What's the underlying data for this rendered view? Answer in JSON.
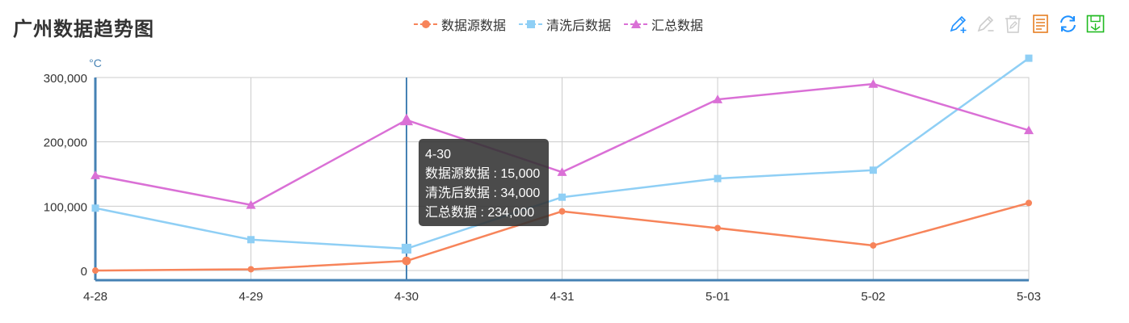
{
  "title": "广州数据趋势图",
  "toolbox": [
    {
      "name": "mark-icon",
      "color": "#1e90ff"
    },
    {
      "name": "mark-undo-icon",
      "color": "#cccccc"
    },
    {
      "name": "mark-clear-icon",
      "color": "#cccccc"
    },
    {
      "name": "data-view-icon",
      "color": "#e67e22"
    },
    {
      "name": "restore-icon",
      "color": "#1e90ff"
    },
    {
      "name": "save-image-icon",
      "color": "#22bb22"
    }
  ],
  "tooltip": {
    "header": "4-30",
    "lines": [
      "数据源数据 : 15,000",
      "清洗后数据 : 34,000",
      "汇总数据 : 234,000"
    ]
  },
  "chart_data": {
    "type": "line",
    "categories": [
      "4-28",
      "4-29",
      "4-30",
      "4-31",
      "5-01",
      "5-02",
      "5-03"
    ],
    "ylabel": "°C",
    "y_ticks": [
      0,
      100000,
      200000,
      300000
    ],
    "y_tick_labels": [
      "0",
      "100,000",
      "200,000",
      "300,000"
    ],
    "ylim": [
      -15000,
      300000
    ],
    "grid": true,
    "legend_position": "top-center",
    "series": [
      {
        "name": "数据源数据",
        "marker": "circle",
        "color": "#f7845a",
        "values": [
          0,
          2000,
          15000,
          92000,
          66000,
          39000,
          105000
        ]
      },
      {
        "name": "清洗后数据",
        "marker": "square",
        "color": "#8fcff5",
        "values": [
          97000,
          48000,
          34000,
          114000,
          143000,
          156000,
          330000
        ]
      },
      {
        "name": "汇总数据",
        "marker": "triangle",
        "color": "#da70d6",
        "values": [
          148000,
          102000,
          234000,
          153000,
          266000,
          290000,
          218000
        ]
      }
    ]
  }
}
